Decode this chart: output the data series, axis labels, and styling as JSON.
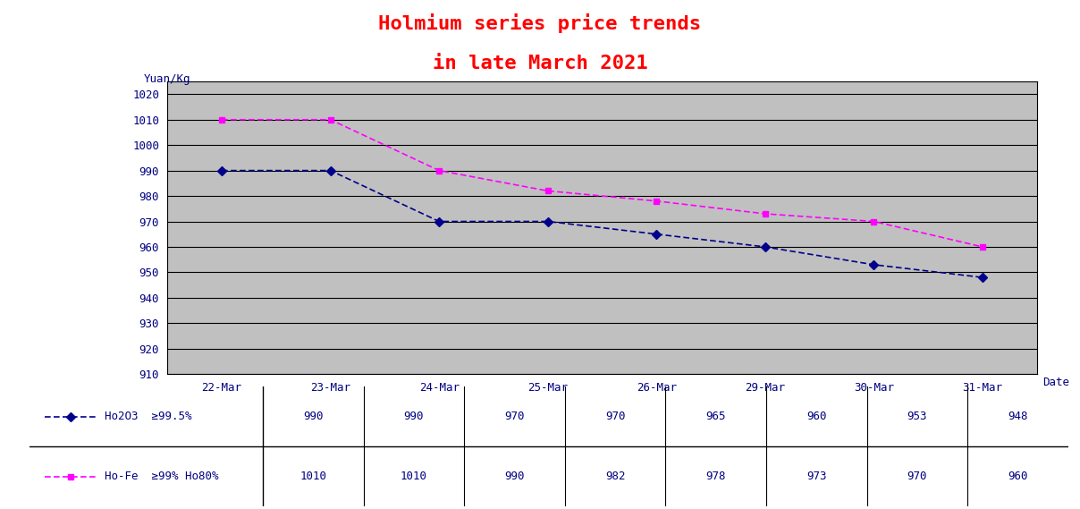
{
  "title_line1": "Holmium series price trends",
  "title_line2": "in late March 2021",
  "title_color": "#FF0000",
  "title_fontsize": 16,
  "ylabel": "Yuan/Kg",
  "xlabel": "Date",
  "dates": [
    "22-Mar",
    "23-Mar",
    "24-Mar",
    "25-Mar",
    "26-Mar",
    "29-Mar",
    "30-Mar",
    "31-Mar"
  ],
  "series": [
    {
      "label": "Ho2O3  ≥99.5%",
      "values": [
        990,
        990,
        970,
        970,
        965,
        960,
        953,
        948
      ],
      "color": "#00008B",
      "marker": "D",
      "markersize": 5
    },
    {
      "label": "Ho-Fe  ≥99% Ho80%",
      "values": [
        1010,
        1010,
        990,
        982,
        978,
        973,
        970,
        960
      ],
      "color": "#FF00FF",
      "marker": "s",
      "markersize": 5
    }
  ],
  "ylim": [
    910,
    1025
  ],
  "yticks": [
    910,
    920,
    930,
    940,
    950,
    960,
    970,
    980,
    990,
    1000,
    1010,
    1020
  ],
  "plot_bg_color": "#C0C0C0",
  "fig_bg_color": "#FFFFFF",
  "grid_color": "#000000",
  "text_color": "#000080"
}
